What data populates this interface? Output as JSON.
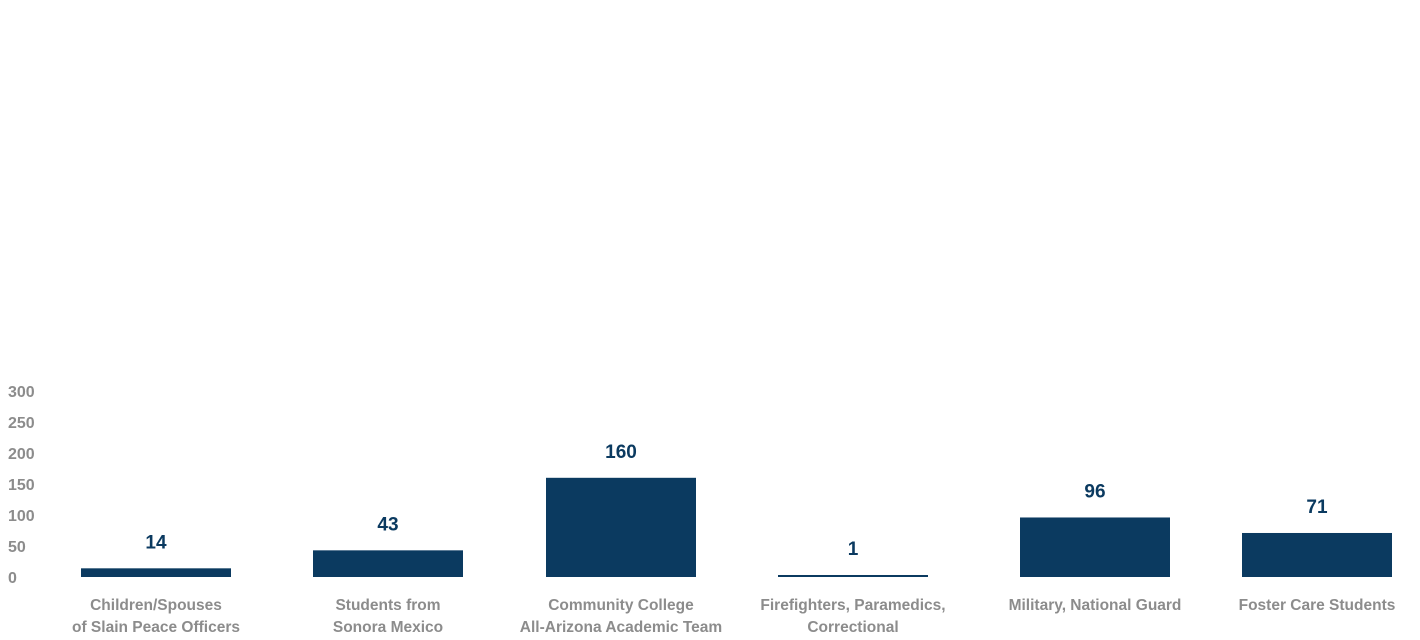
{
  "chart_data": {
    "type": "bar",
    "categories": [
      [
        "Children/Spouses",
        "of Slain Peace Officers"
      ],
      [
        "Students from",
        "Sonora Mexico"
      ],
      [
        "Community College",
        "All-Arizona Academic Team"
      ],
      [
        "Firefighters, Paramedics,",
        "Correctional"
      ],
      [
        "Military, National Guard"
      ],
      [
        "Foster Care Students"
      ]
    ],
    "values": [
      14,
      43,
      160,
      1,
      96,
      71
    ],
    "data_labels": [
      "14",
      "43",
      "160",
      "1",
      "96",
      "71"
    ],
    "yticks": [
      0,
      50,
      100,
      150,
      200,
      250,
      300
    ],
    "ylim": [
      0,
      300
    ],
    "title": "",
    "xlabel": "",
    "ylabel": "",
    "grid": false,
    "legend": "none",
    "colors": {
      "bar": "#0b3a60",
      "data_label": "#0b3a60",
      "axis_text": "#8c8c8c"
    }
  }
}
